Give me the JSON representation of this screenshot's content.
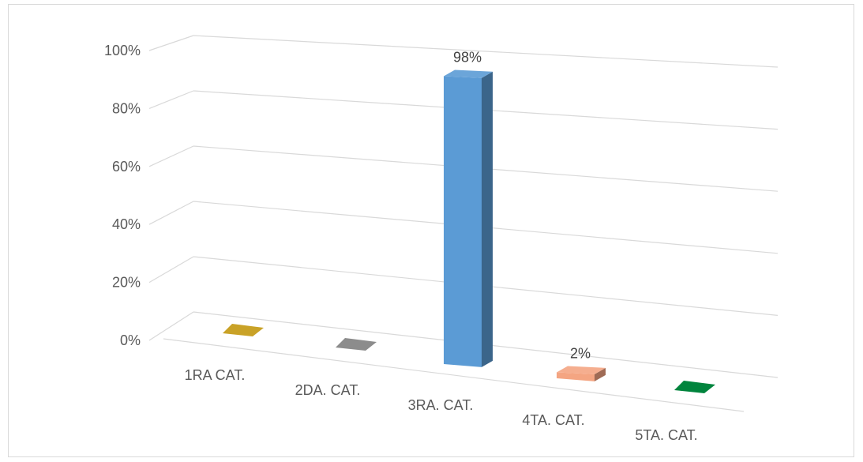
{
  "chart_data": {
    "type": "bar",
    "style": "3d-perspective-column",
    "categories": [
      "1RA CAT.",
      "2DA. CAT.",
      "3RA. CAT.",
      "4TA. CAT.",
      "5TA. CAT."
    ],
    "values": [
      0,
      0,
      98,
      2,
      0
    ],
    "data_labels": [
      "",
      "",
      "98%",
      "2%",
      ""
    ],
    "y_ticks": [
      "0%",
      "20%",
      "40%",
      "60%",
      "80%",
      "100%"
    ],
    "ylim": [
      0,
      100
    ],
    "grid": true,
    "legend": "none",
    "colors": [
      "#c9a227",
      "#8c8c8c",
      "#5b9bd5",
      "#f4a582",
      "#00843d"
    ]
  }
}
